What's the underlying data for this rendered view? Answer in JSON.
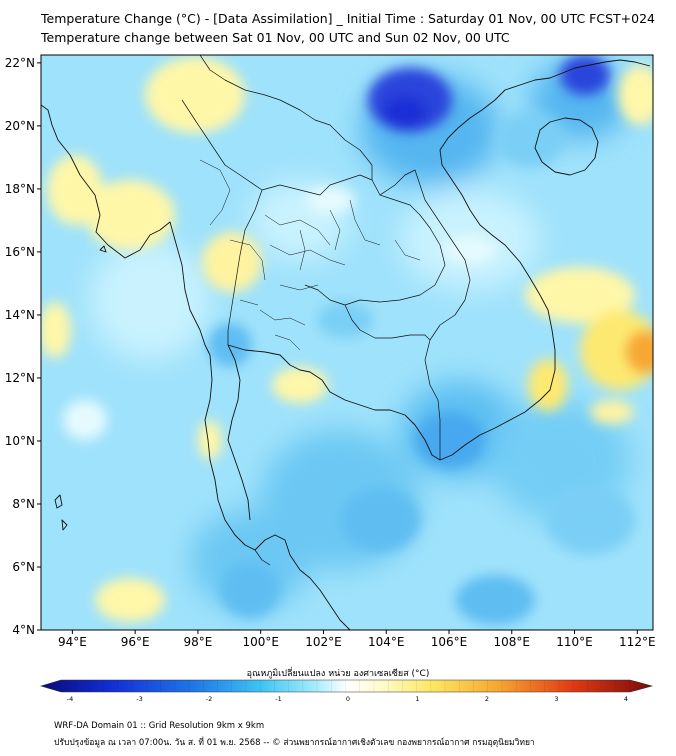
{
  "header": {
    "title_line1": "Temperature Change (°C) - [Data Assimilation] _ Initial Time : Saturday 01 Nov, 00 UTC FCST+024",
    "title_line2": "Temperature change between Sat 01 Nov, 00 UTC and Sun 02 Nov, 00 UTC"
  },
  "map": {
    "lat_labels": [
      "22°N",
      "20°N",
      "18°N",
      "16°N",
      "14°N",
      "12°N",
      "10°N",
      "8°N",
      "6°N",
      "4°N"
    ],
    "lon_labels": [
      "94°E",
      "96°E",
      "98°E",
      "100°E",
      "102°E",
      "104°E",
      "106°E",
      "108°E",
      "110°E",
      "112°E"
    ],
    "lat_values": [
      22,
      20,
      18,
      16,
      14,
      12,
      10,
      8,
      6,
      4
    ],
    "lon_values": [
      94,
      96,
      98,
      100,
      102,
      104,
      106,
      108,
      110,
      112
    ],
    "extent": {
      "lon_min": 93,
      "lon_max": 112.5,
      "lat_min": 4,
      "lat_max": 22.25
    },
    "fill_colors": {
      "deep_blue": "#1e2fd6",
      "mid_blue": "#46a8ef",
      "light_blue": "#8fdcfb",
      "pale_cyan": "#c2f1fe",
      "pale_yellow": "#fff9b8",
      "yellow": "#fde971",
      "orange": "#f7a733"
    }
  },
  "colorbar": {
    "title": "อุณหภูมิเปลี่ยนแปลง หน่วย องศาเซลเซียส (°C)",
    "tick_labels": [
      "-4",
      "-3",
      "-2",
      "-1",
      "0",
      "1",
      "2",
      "3",
      "4"
    ],
    "tick_values": [
      -4,
      -3,
      -2,
      -1,
      0,
      1,
      2,
      3,
      4
    ],
    "min": -4,
    "max": 4
  },
  "footer": {
    "line1": "WRF-DA Domain 01 :: Grid Resolution 9km x 9km",
    "line2": "ปรับปรุงข้อมูล ณ เวลา 07:00น. วัน ส. ที่ 01 พ.ย. 2568 -- © ส่วนพยากรณ์อากาศเชิงตัวเลข กองพยากรณ์อากาศ กรมอุตุนิยมวิทยา"
  }
}
